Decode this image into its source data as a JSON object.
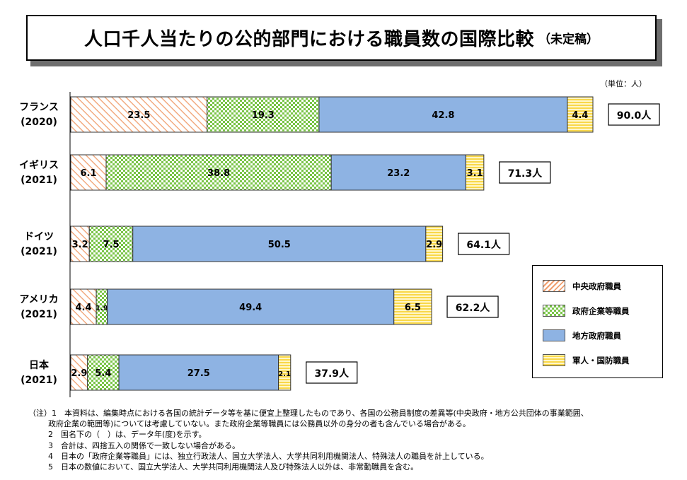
{
  "title": {
    "main": "人口千人当たりの公的部門における職員数の国際比較",
    "sub": "（未定稿）"
  },
  "unit_label": "（単位：人）",
  "legend": [
    {
      "name": "中央政府職員",
      "color": "#f3b08c",
      "pattern": "diag"
    },
    {
      "name": "政府企業等職員",
      "color": "#8fd15c",
      "pattern": "check"
    },
    {
      "name": "地方政府職員",
      "color": "#8eb3e3",
      "pattern": "solid"
    },
    {
      "name": "軍人・国防職員",
      "color": "#ffe066",
      "pattern": "hstripe"
    }
  ],
  "chart_data": {
    "type": "bar",
    "orientation": "horizontal",
    "stacked": true,
    "title": "人口千人当たりの公的部門における職員数の国際比較（未定稿）",
    "unit": "人",
    "categories": [
      {
        "name": "フランス",
        "year": "(2020)",
        "total_label": "90.0人"
      },
      {
        "name": "イギリス",
        "year": "(2021)",
        "total_label": "71.3人"
      },
      {
        "name": "ドイツ",
        "year": "(2021)",
        "total_label": "64.1人"
      },
      {
        "name": "アメリカ",
        "year": "(2021)",
        "total_label": "62.2人"
      },
      {
        "name": "日本",
        "year": "(2021)",
        "total_label": "37.9人"
      }
    ],
    "series": [
      {
        "name": "中央政府職員",
        "values": [
          23.5,
          6.1,
          3.2,
          4.4,
          2.9
        ]
      },
      {
        "name": "政府企業等職員",
        "values": [
          19.3,
          38.8,
          7.5,
          1.9,
          5.4
        ]
      },
      {
        "name": "地方政府職員",
        "values": [
          42.8,
          23.2,
          50.5,
          49.4,
          27.5
        ]
      },
      {
        "name": "軍人・国防職員",
        "values": [
          4.4,
          3.1,
          2.9,
          6.5,
          2.1
        ]
      }
    ],
    "xlim": [
      0,
      90
    ]
  },
  "notes": [
    "（注）1　本資料は、編集時点における各国の統計データ等を基に便宜上整理したものであり、各国の公務員制度の差異等(中央政府・地方公共団体の事業範囲、",
    "政府企業の範囲等)については考慮していない。また政府企業等職員には公務員以外の身分の者も含んでいる場合がある。",
    "2　国名下の（　）は、データ年(度)を示す。",
    "3　合計は、四捨五入の関係で一致しない場合がある。",
    "4　日本の「政府企業等職員」には、独立行政法人、国立大学法人、大学共同利用機関法人、特殊法人の職員を計上している。",
    "5　日本の数値において、国立大学法人、大学共同利用機関法人及び特殊法人以外は、非常勤職員を含む。"
  ]
}
